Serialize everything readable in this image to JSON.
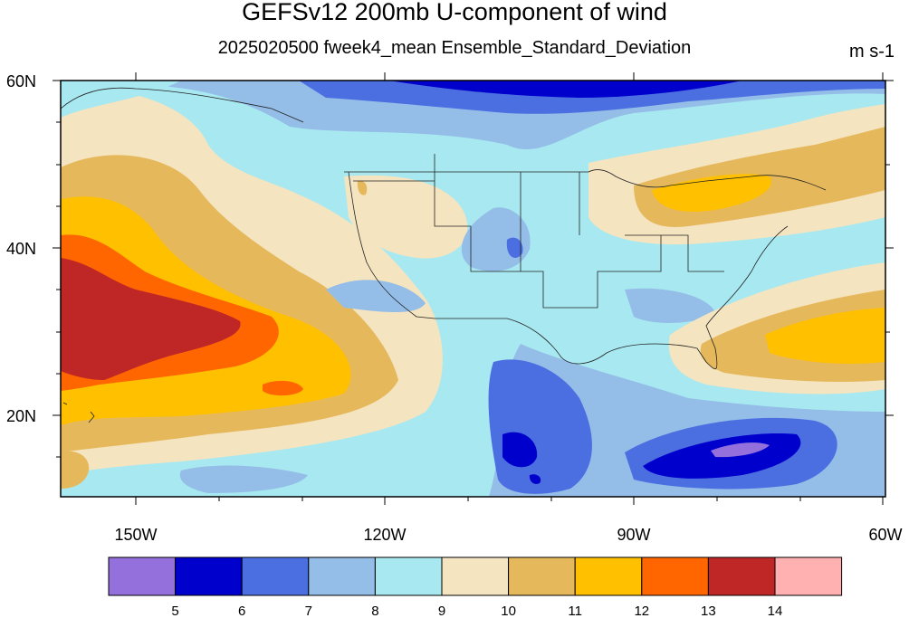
{
  "title": "GEFSv12 200mb U-component of wind",
  "subtitle": "2025020500 fweek4_mean Ensemble_Standard_Deviation",
  "units": "m s-1",
  "lat_labels": [
    "60N",
    "40N",
    "20N"
  ],
  "lon_labels": [
    "150W",
    "120W",
    "90W",
    "60W"
  ],
  "colorbar": {
    "colors": [
      "#9370db",
      "#0000cd",
      "#4b6fe0",
      "#94bde8",
      "#a8e8f0",
      "#f4e4c0",
      "#e6b85c",
      "#ffc000",
      "#ff6600",
      "#bf2626",
      "#ffb0b0"
    ],
    "labels": [
      "5",
      "6",
      "7",
      "8",
      "9",
      "10",
      "11",
      "12",
      "13",
      "14"
    ]
  }
}
